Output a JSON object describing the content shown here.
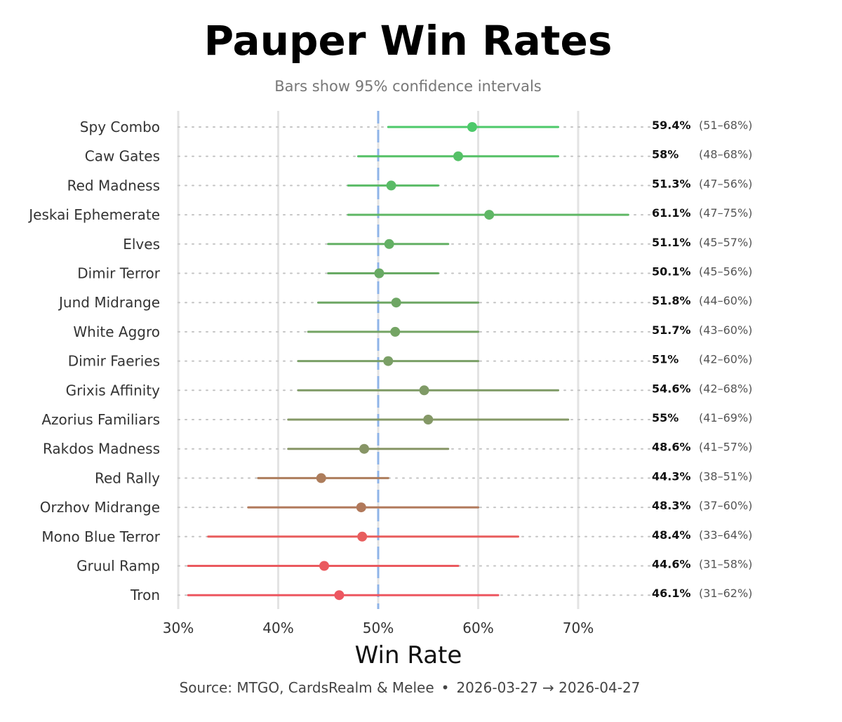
{
  "chart_data": {
    "type": "scatter",
    "title": "Pauper Win Rates",
    "subtitle": "Bars show 95% confidence intervals",
    "xlabel": "Win Rate",
    "xlim": [
      30,
      71.3
    ],
    "x_ticks": [
      30,
      40,
      50,
      60,
      70
    ],
    "x_tick_labels": [
      "30%",
      "40%",
      "50%",
      "60%",
      "70%"
    ],
    "reference_line": 50,
    "grid": true,
    "items": [
      {
        "name": "Spy Combo",
        "value": 59.4,
        "value_label": "59.4%",
        "low": 51,
        "high": 68,
        "ci_label": "(51–68%)",
        "color": "#4dc96a"
      },
      {
        "name": "Caw Gates",
        "value": 58,
        "value_label": "58%",
        "low": 48,
        "high": 68,
        "ci_label": "(48–68%)",
        "color": "#55c167"
      },
      {
        "name": "Red Madness",
        "value": 51.3,
        "value_label": "51.3%",
        "low": 47,
        "high": 56,
        "ci_label": "(47–56%)",
        "color": "#5abb66"
      },
      {
        "name": "Jeskai Ephemerate",
        "value": 61.1,
        "value_label": "61.1%",
        "low": 47,
        "high": 75,
        "ci_label": "(47–75%)",
        "color": "#5fb765"
      },
      {
        "name": "Elves",
        "value": 51.1,
        "value_label": "51.1%",
        "low": 45,
        "high": 57,
        "ci_label": "(45–57%)",
        "color": "#63b064"
      },
      {
        "name": "Dimir Terror",
        "value": 50.1,
        "value_label": "50.1%",
        "low": 45,
        "high": 56,
        "ci_label": "(45–56%)",
        "color": "#68aa64"
      },
      {
        "name": "Jund Midrange",
        "value": 51.8,
        "value_label": "51.8%",
        "low": 44,
        "high": 60,
        "ci_label": "(44–60%)",
        "color": "#6ea664"
      },
      {
        "name": "White Aggro",
        "value": 51.7,
        "value_label": "51.7%",
        "low": 43,
        "high": 60,
        "ci_label": "(43–60%)",
        "color": "#74a464"
      },
      {
        "name": "Dimir Faeries",
        "value": 51,
        "value_label": "51%",
        "low": 42,
        "high": 60,
        "ci_label": "(42–60%)",
        "color": "#7a9f66"
      },
      {
        "name": "Grixis Affinity",
        "value": 54.6,
        "value_label": "54.6%",
        "low": 42,
        "high": 68,
        "ci_label": "(42–68%)",
        "color": "#7f9a66"
      },
      {
        "name": "Azorius Familiars",
        "value": 55,
        "value_label": "55%",
        "low": 41,
        "high": 69,
        "ci_label": "(41–69%)",
        "color": "#849866"
      },
      {
        "name": "Rakdos Madness",
        "value": 48.6,
        "value_label": "48.6%",
        "low": 41,
        "high": 57,
        "ci_label": "(41–57%)",
        "color": "#879566"
      },
      {
        "name": "Red Rally",
        "value": 44.3,
        "value_label": "44.3%",
        "low": 38,
        "high": 51,
        "ci_label": "(38–51%)",
        "color": "#ad7d5c"
      },
      {
        "name": "Orzhov Midrange",
        "value": 48.3,
        "value_label": "48.3%",
        "low": 37,
        "high": 60,
        "ci_label": "(37–60%)",
        "color": "#b1795b"
      },
      {
        "name": "Mono Blue Terror",
        "value": 48.4,
        "value_label": "48.4%",
        "low": 33,
        "high": 64,
        "ci_label": "(33–64%)",
        "color": "#e85e5e"
      },
      {
        "name": "Gruul Ramp",
        "value": 44.6,
        "value_label": "44.6%",
        "low": 31,
        "high": 58,
        "ci_label": "(31–58%)",
        "color": "#ea5a5f"
      },
      {
        "name": "Tron",
        "value": 46.1,
        "value_label": "46.1%",
        "low": 31,
        "high": 62,
        "ci_label": "(31–62%)",
        "color": "#ed5660"
      }
    ]
  },
  "footer": {
    "source": "Source: MTGO, CardsRealm & Melee",
    "separator": "•",
    "date_range": "2026-03-27 → 2026-04-27"
  },
  "colors": {
    "grid": "#e3e3e3",
    "reference_line": "#8fb4e8",
    "dotted_guide": "#c4c4c4"
  }
}
